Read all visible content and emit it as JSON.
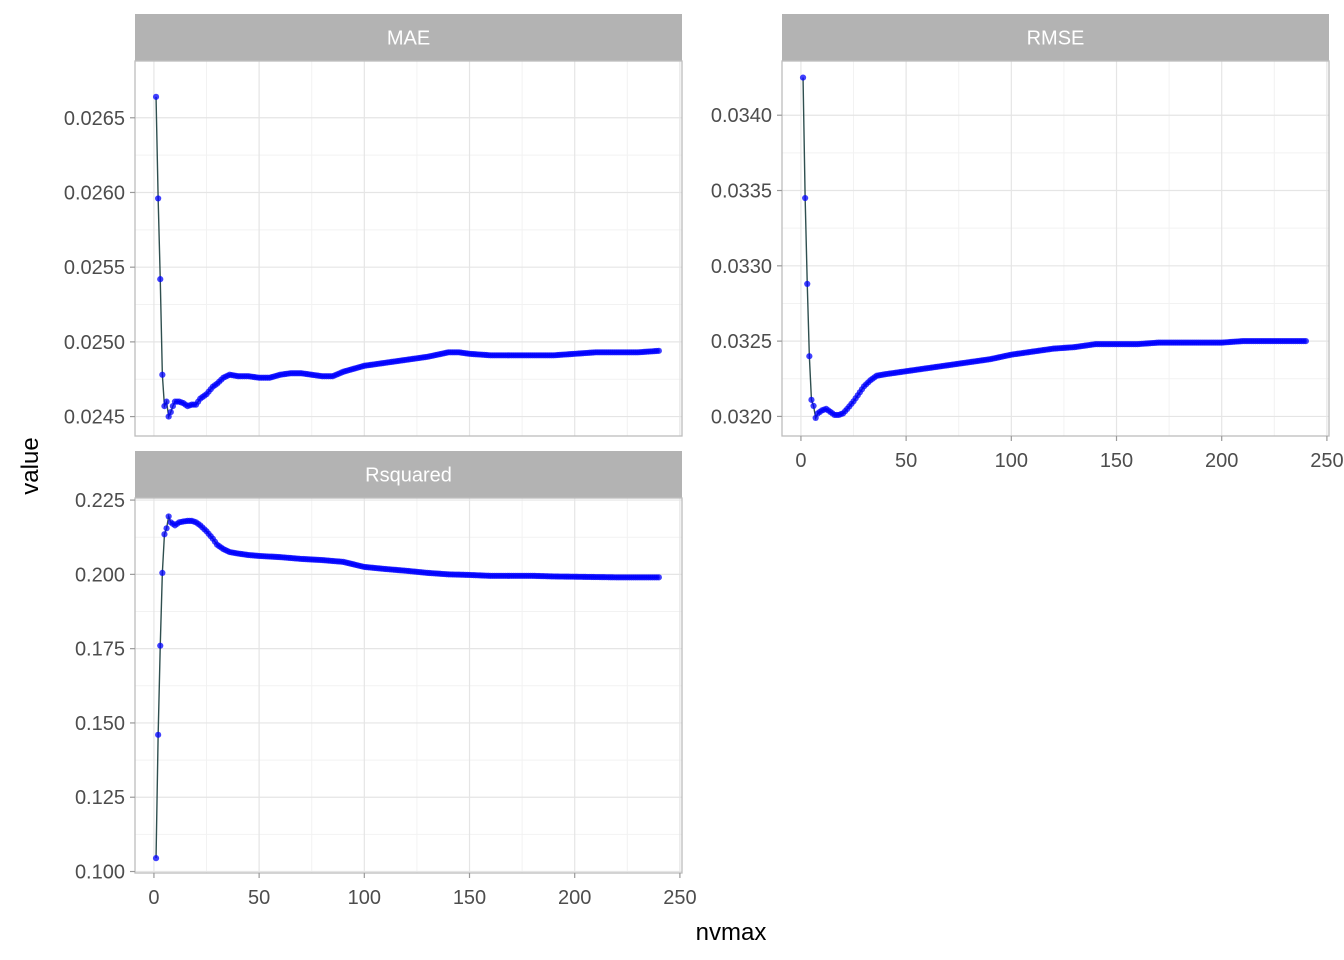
{
  "chart_data": {
    "type": "line",
    "xlabel": "nvmax",
    "ylabel": "value",
    "colors": {
      "line": "#2f4f4f",
      "points": "#0000ff",
      "strip": "#b3b3b3",
      "grid": "#e5e5e5",
      "border": "#bdbdbd"
    },
    "panels": [
      {
        "title": "MAE",
        "xlim": [
          -9,
          251
        ],
        "ylim": [
          0.02437,
          0.02688
        ],
        "xticks": [
          0,
          50,
          100,
          150,
          200,
          250
        ],
        "yticks": [
          0.0245,
          0.025,
          0.0255,
          0.026,
          0.0265
        ],
        "ytick_labels": [
          "0.0245",
          "0.0250",
          "0.0255",
          "0.0260",
          "0.0265"
        ],
        "show_x_axis": false,
        "key_points": [
          [
            1,
            0.02664
          ],
          [
            2,
            0.02596
          ],
          [
            3,
            0.02542
          ],
          [
            4,
            0.02478
          ],
          [
            5,
            0.02457
          ],
          [
            6,
            0.0246
          ],
          [
            7,
            0.0245
          ],
          [
            8,
            0.02453
          ],
          [
            9,
            0.02457
          ],
          [
            10,
            0.0246
          ],
          [
            12,
            0.0246
          ],
          [
            14,
            0.02459
          ],
          [
            16,
            0.02457
          ],
          [
            18,
            0.02458
          ],
          [
            20,
            0.02458
          ],
          [
            22,
            0.02462
          ],
          [
            25,
            0.02465
          ],
          [
            28,
            0.0247
          ],
          [
            30,
            0.02472
          ],
          [
            33,
            0.02476
          ],
          [
            36,
            0.02478
          ],
          [
            40,
            0.02477
          ],
          [
            45,
            0.02477
          ],
          [
            50,
            0.02476
          ],
          [
            55,
            0.02476
          ],
          [
            60,
            0.02478
          ],
          [
            65,
            0.02479
          ],
          [
            70,
            0.02479
          ],
          [
            75,
            0.02478
          ],
          [
            80,
            0.02477
          ],
          [
            85,
            0.02477
          ],
          [
            90,
            0.0248
          ],
          [
            95,
            0.02482
          ],
          [
            100,
            0.02484
          ],
          [
            110,
            0.02486
          ],
          [
            120,
            0.02488
          ],
          [
            130,
            0.0249
          ],
          [
            140,
            0.02493
          ],
          [
            145,
            0.02493
          ],
          [
            150,
            0.02492
          ],
          [
            160,
            0.02491
          ],
          [
            170,
            0.02491
          ],
          [
            180,
            0.02491
          ],
          [
            190,
            0.02491
          ],
          [
            200,
            0.02492
          ],
          [
            210,
            0.02493
          ],
          [
            220,
            0.02493
          ],
          [
            230,
            0.02493
          ],
          [
            240,
            0.02494
          ]
        ]
      },
      {
        "title": "RMSE",
        "xlim": [
          -9,
          251
        ],
        "ylim": [
          0.03187,
          0.03436
        ],
        "xticks": [
          0,
          50,
          100,
          150,
          200,
          250
        ],
        "yticks": [
          0.032,
          0.0325,
          0.033,
          0.0335,
          0.034
        ],
        "ytick_labels": [
          "0.0320",
          "0.0325",
          "0.0330",
          "0.0335",
          "0.0340"
        ],
        "xtick_labels": [
          "0",
          "50",
          "100",
          "150",
          "200",
          "250"
        ],
        "show_x_axis": true,
        "key_points": [
          [
            1,
            0.03425
          ],
          [
            2,
            0.03345
          ],
          [
            3,
            0.03288
          ],
          [
            4,
            0.0324
          ],
          [
            5,
            0.03211
          ],
          [
            6,
            0.03207
          ],
          [
            7,
            0.03199
          ],
          [
            8,
            0.03202
          ],
          [
            10,
            0.03204
          ],
          [
            12,
            0.03205
          ],
          [
            14,
            0.03203
          ],
          [
            16,
            0.03201
          ],
          [
            18,
            0.03201
          ],
          [
            20,
            0.03202
          ],
          [
            22,
            0.03205
          ],
          [
            25,
            0.0321
          ],
          [
            28,
            0.03216
          ],
          [
            30,
            0.0322
          ],
          [
            33,
            0.03224
          ],
          [
            36,
            0.03227
          ],
          [
            40,
            0.03228
          ],
          [
            45,
            0.03229
          ],
          [
            50,
            0.0323
          ],
          [
            55,
            0.03231
          ],
          [
            60,
            0.03232
          ],
          [
            70,
            0.03234
          ],
          [
            80,
            0.03236
          ],
          [
            90,
            0.03238
          ],
          [
            100,
            0.03241
          ],
          [
            110,
            0.03243
          ],
          [
            120,
            0.03245
          ],
          [
            130,
            0.03246
          ],
          [
            140,
            0.03248
          ],
          [
            150,
            0.03248
          ],
          [
            160,
            0.03248
          ],
          [
            170,
            0.03249
          ],
          [
            180,
            0.03249
          ],
          [
            190,
            0.03249
          ],
          [
            200,
            0.03249
          ],
          [
            210,
            0.0325
          ],
          [
            220,
            0.0325
          ],
          [
            230,
            0.0325
          ],
          [
            240,
            0.0325
          ]
        ]
      },
      {
        "title": "Rsquared",
        "xlim": [
          -9,
          251
        ],
        "ylim": [
          0.0995,
          0.2257
        ],
        "xticks": [
          0,
          50,
          100,
          150,
          200,
          250
        ],
        "yticks": [
          0.1,
          0.125,
          0.15,
          0.175,
          0.2,
          0.225
        ],
        "ytick_labels": [
          "0.100",
          "0.125",
          "0.150",
          "0.175",
          "0.200",
          "0.225"
        ],
        "xtick_labels": [
          "0",
          "50",
          "100",
          "150",
          "200",
          "250"
        ],
        "show_x_axis": true,
        "key_points": [
          [
            1,
            0.1045
          ],
          [
            2,
            0.146
          ],
          [
            3,
            0.176
          ],
          [
            4,
            0.2005
          ],
          [
            5,
            0.2135
          ],
          [
            6,
            0.2155
          ],
          [
            7,
            0.2195
          ],
          [
            8,
            0.2175
          ],
          [
            10,
            0.2165
          ],
          [
            12,
            0.2175
          ],
          [
            14,
            0.2178
          ],
          [
            16,
            0.218
          ],
          [
            18,
            0.218
          ],
          [
            20,
            0.2175
          ],
          [
            22,
            0.2165
          ],
          [
            25,
            0.2145
          ],
          [
            28,
            0.212
          ],
          [
            30,
            0.21
          ],
          [
            33,
            0.2085
          ],
          [
            36,
            0.2075
          ],
          [
            40,
            0.207
          ],
          [
            45,
            0.2065
          ],
          [
            50,
            0.2062
          ],
          [
            60,
            0.2058
          ],
          [
            70,
            0.2052
          ],
          [
            80,
            0.2048
          ],
          [
            90,
            0.2042
          ],
          [
            100,
            0.2025
          ],
          [
            110,
            0.2018
          ],
          [
            120,
            0.2012
          ],
          [
            130,
            0.2005
          ],
          [
            140,
            0.2
          ],
          [
            150,
            0.1998
          ],
          [
            160,
            0.1995
          ],
          [
            170,
            0.1995
          ],
          [
            180,
            0.1995
          ],
          [
            190,
            0.1993
          ],
          [
            200,
            0.1992
          ],
          [
            210,
            0.1991
          ],
          [
            220,
            0.199
          ],
          [
            230,
            0.199
          ],
          [
            240,
            0.199
          ]
        ]
      }
    ]
  }
}
